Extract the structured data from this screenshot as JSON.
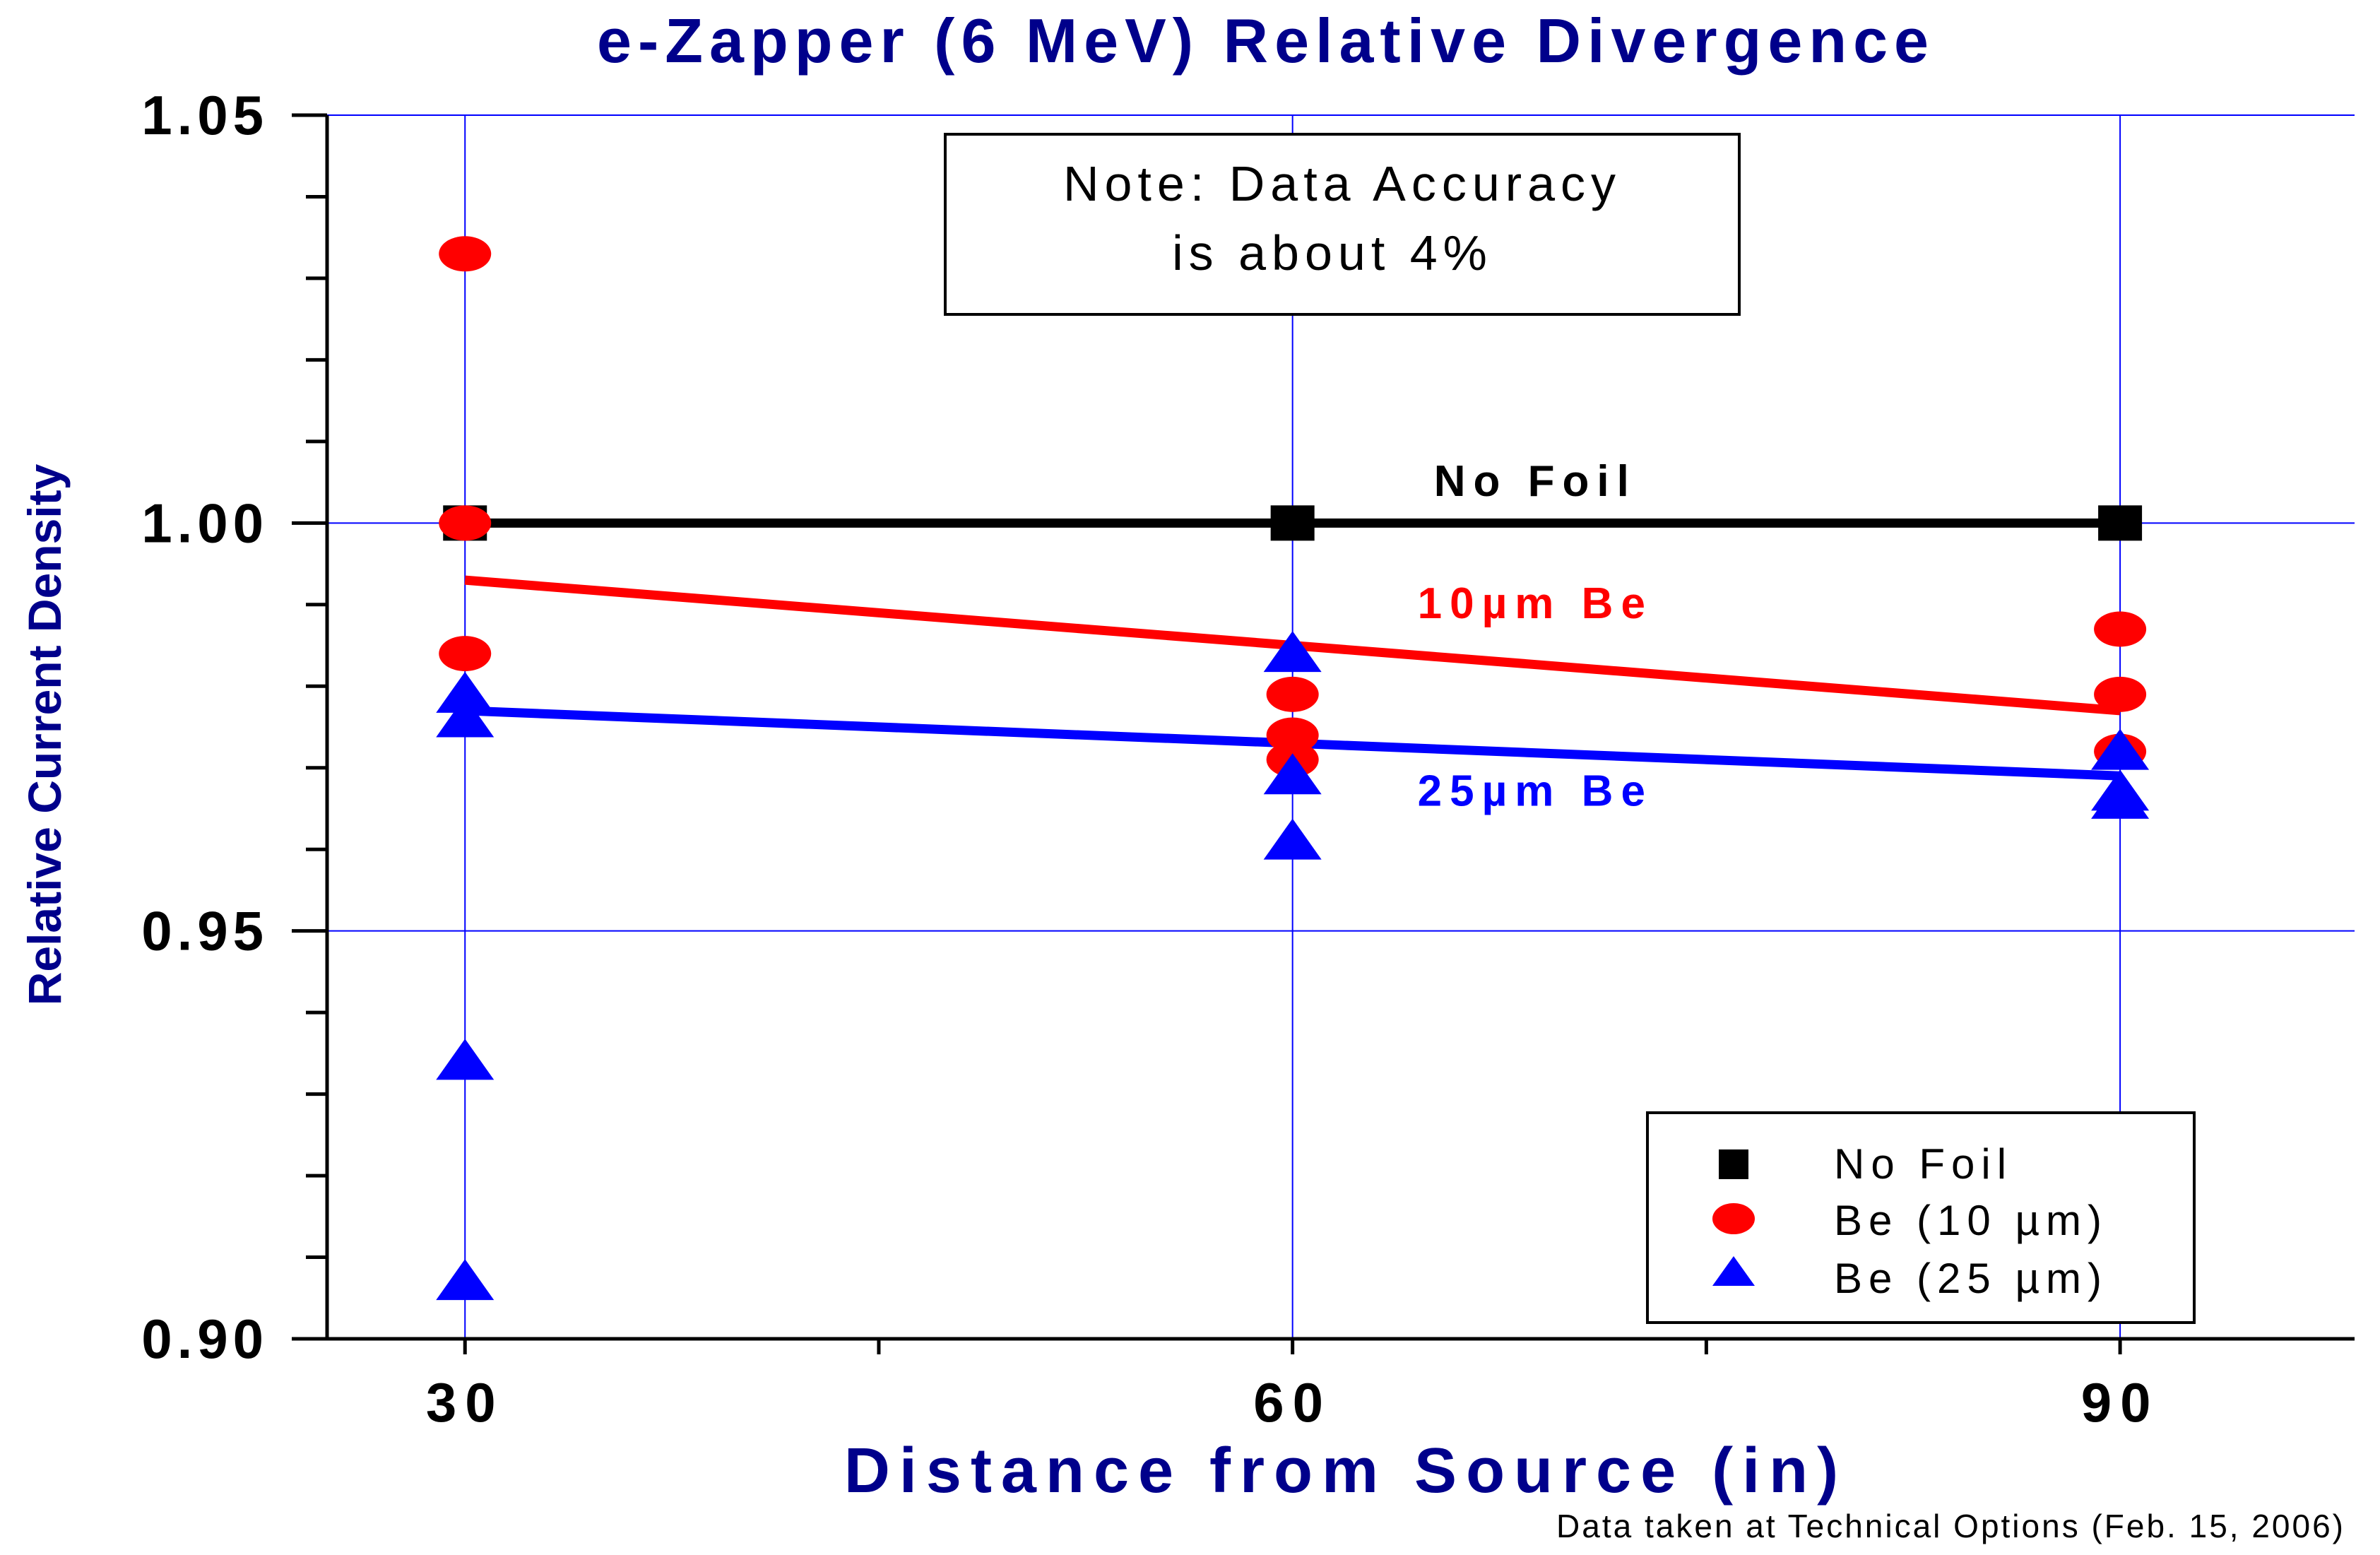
{
  "chart_data": {
    "type": "scatter",
    "title": "e-Zapper (6 MeV) Relative Divergence",
    "xlabel": "Distance from Source (in)",
    "ylabel": "Relative Current Density",
    "xlim": [
      25,
      98.5
    ],
    "ylim": [
      0.9,
      1.05
    ],
    "x_ticks": [
      30,
      60,
      90
    ],
    "x_tick_labels": [
      "30",
      "60",
      "90"
    ],
    "y_ticks": [
      0.9,
      0.95,
      1.0,
      1.05
    ],
    "y_tick_labels": [
      "0.90",
      "0.95",
      "1.00",
      "1.05"
    ],
    "x_minor_ticks": [
      30,
      45,
      60,
      75,
      90
    ],
    "y_minor_ticks": [
      0.9,
      0.91,
      0.92,
      0.93,
      0.94,
      0.95,
      0.96,
      0.97,
      0.98,
      0.99,
      1.0,
      1.01,
      1.02,
      1.03,
      1.04,
      1.05
    ],
    "grid": true,
    "legend_position": "bottom-right",
    "series": [
      {
        "name": "No Foil",
        "marker": "square",
        "color": "#000000",
        "points": [
          {
            "x": 30,
            "y": 1.0
          },
          {
            "x": 60,
            "y": 1.0
          },
          {
            "x": 90,
            "y": 1.0
          }
        ],
        "fit": {
          "x": [
            30,
            90
          ],
          "y": [
            1.0,
            1.0
          ]
        },
        "fit_label": "No Foil"
      },
      {
        "name": "Be (10 µm)",
        "marker": "circle",
        "color": "#ff0000",
        "points": [
          {
            "x": 30,
            "y": 1.033
          },
          {
            "x": 30,
            "y": 1.0
          },
          {
            "x": 30,
            "y": 0.984
          },
          {
            "x": 60,
            "y": 0.979
          },
          {
            "x": 60,
            "y": 0.974
          },
          {
            "x": 60,
            "y": 0.971
          },
          {
            "x": 90,
            "y": 0.987
          },
          {
            "x": 90,
            "y": 0.979
          },
          {
            "x": 90,
            "y": 0.972
          }
        ],
        "fit": {
          "x": [
            30,
            90
          ],
          "y": [
            0.993,
            0.977
          ]
        },
        "fit_label": "10µm Be"
      },
      {
        "name": "Be (25 µm)",
        "marker": "triangle",
        "color": "#0000ff",
        "points": [
          {
            "x": 30,
            "y": 0.979
          },
          {
            "x": 30,
            "y": 0.976
          },
          {
            "x": 30,
            "y": 0.934
          },
          {
            "x": 30,
            "y": 0.907
          },
          {
            "x": 60,
            "y": 0.984
          },
          {
            "x": 60,
            "y": 0.969
          },
          {
            "x": 60,
            "y": 0.961
          },
          {
            "x": 90,
            "y": 0.972
          },
          {
            "x": 90,
            "y": 0.967
          },
          {
            "x": 90,
            "y": 0.966
          }
        ],
        "fit": {
          "x": [
            30,
            90
          ],
          "y": [
            0.977,
            0.969
          ]
        },
        "fit_label": "25µm Be"
      }
    ],
    "annotations": [
      {
        "text_lines": [
          "Note: Data Accuracy",
          "is about 4%"
        ]
      }
    ],
    "footnote": "Data taken at Technical Options (Feb. 15, 2006)"
  },
  "colors": {
    "title": "#00008b",
    "axis": "#000000",
    "grid": "#0000ff",
    "background": "#ffffff"
  }
}
